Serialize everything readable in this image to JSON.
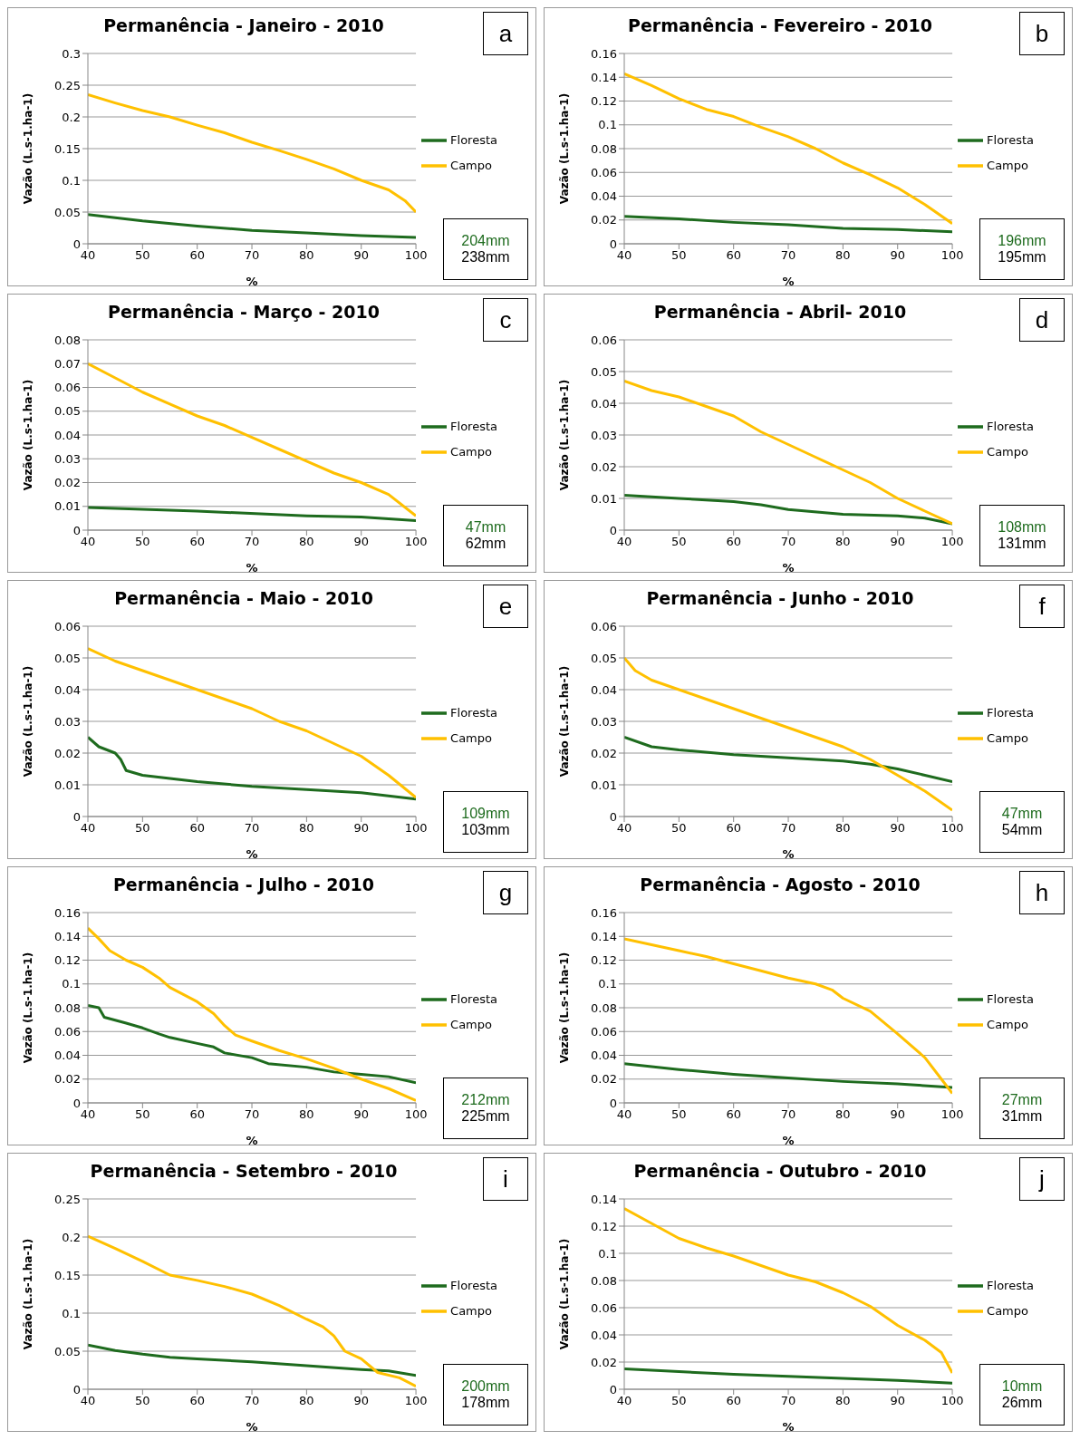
{
  "chart_data": [
    {
      "type": "line",
      "title": "Permanência - Janeiro - 2010",
      "xlabel": "%",
      "ylabel": "Vazão  (L.s-1.ha-1)",
      "annotations": [
        "a",
        "204mm",
        "238mm"
      ],
      "xlim": [
        40,
        100
      ],
      "xticks": [
        40,
        50,
        60,
        70,
        80,
        90,
        100
      ],
      "ylim": [
        0,
        0.3
      ],
      "yticks": [
        0,
        0.05,
        0.1,
        0.15,
        0.2,
        0.25,
        0.3
      ],
      "grid": "y",
      "legend": "right",
      "series": [
        {
          "name": "Floresta",
          "color": "#1e6b1e",
          "x": [
            40,
            50,
            60,
            70,
            80,
            90,
            100
          ],
          "values": [
            0.046,
            0.036,
            0.028,
            0.021,
            0.017,
            0.013,
            0.01
          ]
        },
        {
          "name": "Campo",
          "color": "#ffc000",
          "x": [
            40,
            45,
            50,
            55,
            60,
            65,
            70,
            75,
            80,
            85,
            90,
            95,
            98,
            100
          ],
          "values": [
            0.235,
            0.222,
            0.21,
            0.2,
            0.187,
            0.175,
            0.16,
            0.147,
            0.133,
            0.118,
            0.1,
            0.085,
            0.068,
            0.05
          ]
        }
      ]
    },
    {
      "type": "line",
      "title": "Permanência - Fevereiro - 2010",
      "xlabel": "%",
      "ylabel": "Vazão  (L.s-1.ha-1)",
      "annotations": [
        "b",
        "196mm",
        "195mm"
      ],
      "xlim": [
        40,
        100
      ],
      "xticks": [
        40,
        50,
        60,
        70,
        80,
        90,
        100
      ],
      "ylim": [
        0,
        0.16
      ],
      "yticks": [
        0,
        0.02,
        0.04,
        0.06,
        0.08,
        0.1,
        0.12,
        0.14,
        0.16
      ],
      "grid": "y",
      "legend": "right",
      "series": [
        {
          "name": "Floresta",
          "color": "#1e6b1e",
          "x": [
            40,
            50,
            60,
            70,
            80,
            90,
            100
          ],
          "values": [
            0.023,
            0.021,
            0.018,
            0.016,
            0.013,
            0.012,
            0.01
          ]
        },
        {
          "name": "Campo",
          "color": "#ffc000",
          "x": [
            40,
            45,
            50,
            55,
            60,
            65,
            70,
            75,
            80,
            85,
            90,
            95,
            100
          ],
          "values": [
            0.143,
            0.133,
            0.122,
            0.113,
            0.107,
            0.098,
            0.09,
            0.08,
            0.068,
            0.058,
            0.047,
            0.033,
            0.017
          ]
        }
      ]
    },
    {
      "type": "line",
      "title": "Permanência - Março - 2010",
      "xlabel": "%",
      "ylabel": "Vazão  (L.s-1.ha-1)",
      "annotations": [
        "c",
        "47mm",
        "62mm"
      ],
      "xlim": [
        40,
        100
      ],
      "xticks": [
        40,
        50,
        60,
        70,
        80,
        90,
        100
      ],
      "ylim": [
        0,
        0.08
      ],
      "yticks": [
        0,
        0.01,
        0.02,
        0.03,
        0.04,
        0.05,
        0.06,
        0.07,
        0.08
      ],
      "grid": "y",
      "legend": "right",
      "series": [
        {
          "name": "Floresta",
          "color": "#1e6b1e",
          "x": [
            40,
            60,
            80,
            90,
            100
          ],
          "values": [
            0.0095,
            0.008,
            0.006,
            0.0055,
            0.004
          ]
        },
        {
          "name": "Campo",
          "color": "#ffc000",
          "x": [
            40,
            45,
            50,
            55,
            60,
            65,
            70,
            75,
            80,
            85,
            90,
            95,
            100
          ],
          "values": [
            0.07,
            0.064,
            0.058,
            0.053,
            0.048,
            0.044,
            0.039,
            0.034,
            0.029,
            0.024,
            0.02,
            0.015,
            0.006
          ]
        }
      ]
    },
    {
      "type": "line",
      "title": "Permanência - Abril- 2010",
      "xlabel": "%",
      "ylabel": "Vazão  (L.s-1.ha-1)",
      "annotations": [
        "d",
        "108mm",
        "131mm"
      ],
      "xlim": [
        40,
        100
      ],
      "xticks": [
        40,
        50,
        60,
        70,
        80,
        90,
        100
      ],
      "ylim": [
        0,
        0.06
      ],
      "yticks": [
        0,
        0.01,
        0.02,
        0.03,
        0.04,
        0.05,
        0.06
      ],
      "grid": "y",
      "legend": "right",
      "series": [
        {
          "name": "Floresta",
          "color": "#1e6b1e",
          "x": [
            40,
            50,
            60,
            65,
            70,
            80,
            90,
            95,
            100
          ],
          "values": [
            0.011,
            0.01,
            0.009,
            0.008,
            0.0065,
            0.005,
            0.0045,
            0.0038,
            0.002
          ]
        },
        {
          "name": "Campo",
          "color": "#ffc000",
          "x": [
            40,
            45,
            50,
            55,
            60,
            65,
            70,
            75,
            80,
            85,
            90,
            95,
            100
          ],
          "values": [
            0.047,
            0.044,
            0.042,
            0.039,
            0.036,
            0.031,
            0.027,
            0.023,
            0.019,
            0.015,
            0.01,
            0.006,
            0.002
          ]
        }
      ]
    },
    {
      "type": "line",
      "title": "Permanência - Maio - 2010",
      "xlabel": "%",
      "ylabel": "Vazão  (L.s-1.ha-1)",
      "annotations": [
        "e",
        "109mm",
        "103mm"
      ],
      "xlim": [
        40,
        100
      ],
      "xticks": [
        40,
        50,
        60,
        70,
        80,
        90,
        100
      ],
      "ylim": [
        0,
        0.06
      ],
      "yticks": [
        0,
        0.01,
        0.02,
        0.03,
        0.04,
        0.05,
        0.06
      ],
      "grid": "y",
      "legend": "right",
      "series": [
        {
          "name": "Floresta",
          "color": "#1e6b1e",
          "x": [
            40,
            42,
            45,
            46,
            47,
            50,
            55,
            60,
            70,
            80,
            90,
            100
          ],
          "values": [
            0.025,
            0.022,
            0.02,
            0.018,
            0.0145,
            0.013,
            0.012,
            0.011,
            0.0095,
            0.0085,
            0.0075,
            0.0055
          ]
        },
        {
          "name": "Campo",
          "color": "#ffc000",
          "x": [
            40,
            45,
            50,
            55,
            60,
            65,
            70,
            75,
            80,
            85,
            90,
            95,
            100
          ],
          "values": [
            0.053,
            0.049,
            0.046,
            0.043,
            0.04,
            0.037,
            0.034,
            0.03,
            0.027,
            0.023,
            0.019,
            0.013,
            0.006
          ]
        }
      ]
    },
    {
      "type": "line",
      "title": "Permanência - Junho - 2010",
      "xlabel": "%",
      "ylabel": "Vazão  (L.s-1.ha-1)",
      "annotations": [
        "f",
        "47mm",
        "54mm"
      ],
      "xlim": [
        40,
        100
      ],
      "xticks": [
        40,
        50,
        60,
        70,
        80,
        90,
        100
      ],
      "ylim": [
        0,
        0.06
      ],
      "yticks": [
        0,
        0.01,
        0.02,
        0.03,
        0.04,
        0.05,
        0.06
      ],
      "grid": "y",
      "legend": "right",
      "series": [
        {
          "name": "Floresta",
          "color": "#1e6b1e",
          "x": [
            40,
            45,
            50,
            60,
            70,
            80,
            85,
            90,
            95,
            100
          ],
          "values": [
            0.025,
            0.022,
            0.021,
            0.0195,
            0.0185,
            0.0175,
            0.0165,
            0.015,
            0.013,
            0.011
          ]
        },
        {
          "name": "Campo",
          "color": "#ffc000",
          "x": [
            40,
            42,
            45,
            50,
            55,
            60,
            65,
            70,
            75,
            80,
            85,
            90,
            95,
            100
          ],
          "values": [
            0.05,
            0.046,
            0.043,
            0.04,
            0.037,
            0.034,
            0.031,
            0.028,
            0.025,
            0.022,
            0.018,
            0.013,
            0.008,
            0.002
          ]
        }
      ]
    },
    {
      "type": "line",
      "title": "Permanência - Julho - 2010",
      "xlabel": "%",
      "ylabel": "Vazão  (L.s-1.ha-1)",
      "annotations": [
        "g",
        "212mm",
        "225mm"
      ],
      "xlim": [
        40,
        100
      ],
      "xticks": [
        40,
        50,
        60,
        70,
        80,
        90,
        100
      ],
      "ylim": [
        0,
        0.16
      ],
      "yticks": [
        0,
        0.02,
        0.04,
        0.06,
        0.08,
        0.1,
        0.12,
        0.14,
        0.16
      ],
      "grid": "y",
      "legend": "right",
      "series": [
        {
          "name": "Floresta",
          "color": "#1e6b1e",
          "x": [
            40,
            42,
            43,
            47,
            50,
            53,
            55,
            60,
            63,
            65,
            70,
            73,
            80,
            85,
            90,
            95,
            100
          ],
          "values": [
            0.082,
            0.08,
            0.072,
            0.067,
            0.063,
            0.058,
            0.055,
            0.05,
            0.047,
            0.042,
            0.038,
            0.033,
            0.03,
            0.026,
            0.024,
            0.022,
            0.017
          ]
        },
        {
          "name": "Campo",
          "color": "#ffc000",
          "x": [
            40,
            42,
            44,
            47,
            50,
            53,
            55,
            60,
            63,
            65,
            67,
            70,
            75,
            80,
            85,
            90,
            95,
            100
          ],
          "values": [
            0.147,
            0.138,
            0.128,
            0.12,
            0.114,
            0.105,
            0.097,
            0.085,
            0.075,
            0.065,
            0.057,
            0.052,
            0.044,
            0.037,
            0.029,
            0.02,
            0.012,
            0.002
          ]
        }
      ]
    },
    {
      "type": "line",
      "title": "Permanência - Agosto - 2010",
      "xlabel": "%",
      "ylabel": "Vazão  (L.s-1.ha-1)",
      "annotations": [
        "h",
        "27mm",
        "31mm"
      ],
      "xlim": [
        40,
        100
      ],
      "xticks": [
        40,
        50,
        60,
        70,
        80,
        90,
        100
      ],
      "ylim": [
        0,
        0.16
      ],
      "yticks": [
        0,
        0.02,
        0.04,
        0.06,
        0.08,
        0.1,
        0.12,
        0.14,
        0.16
      ],
      "grid": "y",
      "legend": "right",
      "series": [
        {
          "name": "Floresta",
          "color": "#1e6b1e",
          "x": [
            40,
            50,
            60,
            70,
            80,
            90,
            100
          ],
          "values": [
            0.033,
            0.028,
            0.024,
            0.021,
            0.018,
            0.016,
            0.013
          ]
        },
        {
          "name": "Campo",
          "color": "#ffc000",
          "x": [
            40,
            45,
            50,
            55,
            60,
            65,
            70,
            75,
            78,
            80,
            85,
            90,
            95,
            98,
            100
          ],
          "values": [
            0.138,
            0.133,
            0.128,
            0.123,
            0.117,
            0.111,
            0.105,
            0.1,
            0.095,
            0.088,
            0.077,
            0.058,
            0.038,
            0.02,
            0.008
          ]
        }
      ]
    },
    {
      "type": "line",
      "title": "Permanência - Setembro - 2010",
      "xlabel": "%",
      "ylabel": "Vazão  (L.s-1.ha-1)",
      "annotations": [
        "i",
        "200mm",
        "178mm"
      ],
      "xlim": [
        40,
        100
      ],
      "xticks": [
        40,
        50,
        60,
        70,
        80,
        90,
        100
      ],
      "ylim": [
        0,
        0.25
      ],
      "yticks": [
        0,
        0.05,
        0.1,
        0.15,
        0.2,
        0.25
      ],
      "grid": "y",
      "legend": "right",
      "series": [
        {
          "name": "Floresta",
          "color": "#1e6b1e",
          "x": [
            40,
            45,
            50,
            55,
            60,
            70,
            80,
            90,
            95,
            100
          ],
          "values": [
            0.058,
            0.051,
            0.046,
            0.042,
            0.04,
            0.036,
            0.031,
            0.026,
            0.024,
            0.018
          ]
        },
        {
          "name": "Campo",
          "color": "#ffc000",
          "x": [
            40,
            45,
            50,
            55,
            60,
            65,
            70,
            75,
            80,
            83,
            85,
            87,
            90,
            93,
            97,
            100
          ],
          "values": [
            0.201,
            0.185,
            0.168,
            0.15,
            0.143,
            0.135,
            0.125,
            0.11,
            0.092,
            0.082,
            0.07,
            0.05,
            0.04,
            0.022,
            0.015,
            0.004
          ]
        }
      ]
    },
    {
      "type": "line",
      "title": "Permanência - Outubro - 2010",
      "xlabel": "%",
      "ylabel": "Vazão  (L.s-1.ha-1)",
      "annotations": [
        "j",
        "10mm",
        "26mm"
      ],
      "xlim": [
        40,
        100
      ],
      "xticks": [
        40,
        50,
        60,
        70,
        80,
        90,
        100
      ],
      "ylim": [
        0,
        0.14
      ],
      "yticks": [
        0,
        0.02,
        0.04,
        0.06,
        0.08,
        0.1,
        0.12,
        0.14
      ],
      "grid": "y",
      "legend": "right",
      "series": [
        {
          "name": "Floresta",
          "color": "#1e6b1e",
          "x": [
            40,
            50,
            60,
            70,
            80,
            90,
            100
          ],
          "values": [
            0.015,
            0.013,
            0.011,
            0.0095,
            0.008,
            0.0065,
            0.0045
          ]
        },
        {
          "name": "Campo",
          "color": "#ffc000",
          "x": [
            40,
            45,
            50,
            55,
            60,
            65,
            70,
            75,
            80,
            85,
            90,
            95,
            98,
            100
          ],
          "values": [
            0.133,
            0.122,
            0.111,
            0.104,
            0.098,
            0.091,
            0.084,
            0.079,
            0.071,
            0.061,
            0.047,
            0.036,
            0.027,
            0.012
          ]
        }
      ]
    }
  ]
}
